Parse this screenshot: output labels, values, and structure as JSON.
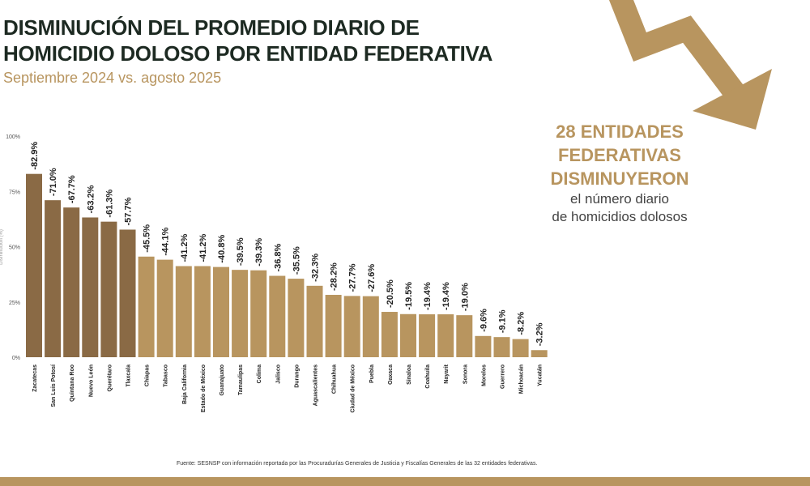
{
  "header": {
    "title_line1": "DISMINUCIÓN DEL PROMEDIO DIARIO DE",
    "title_line2": "HOMICIDIO DOLOSO POR ENTIDAD FEDERATIVA",
    "subtitle": "Septiembre 2024 vs. agosto 2025"
  },
  "callout": {
    "line1": "28 ENTIDADES",
    "line2": "FEDERATIVAS",
    "line3": "DISMINUYERON",
    "line4": "el número diario",
    "line5": "de homicidios dolosos"
  },
  "source": "Fuente: SESNSP con información reportada por las Procuradurías Generales de Justicia y Fiscalías Generales de las 32 entidades federativas.",
  "colors": {
    "highlight": "#8a6a45",
    "bar": "#b8955f",
    "title": "#1d2a22",
    "arrow": "#b8955f"
  },
  "icons": {
    "decoration": "down-trend-arrow-icon"
  },
  "chart_data": {
    "type": "bar",
    "ylabel": "Disminución (%)",
    "ylim": [
      0,
      100
    ],
    "yticks": [
      "0%",
      "25%",
      "50%",
      "75%",
      "100%"
    ],
    "categories": [
      "Zacatecas",
      "San Luis Potosí",
      "Quintana Roo",
      "Nuevo León",
      "Querétaro",
      "Tlaxcala",
      "Chiapas",
      "Tabasco",
      "Baja California",
      "Estado de México",
      "Guanajuato",
      "Tamaulipas",
      "Colima",
      "Jalisco",
      "Durango",
      "Aguascalientes",
      "Chihuahua",
      "Ciudad de México",
      "Puebla",
      "Oaxaca",
      "Sinaloa",
      "Coahuila",
      "Nayarit",
      "Sonora",
      "Morelos",
      "Guerrero",
      "Michoacán",
      "Yucatán"
    ],
    "values": [
      82.9,
      71.0,
      67.7,
      63.2,
      61.3,
      57.7,
      45.5,
      44.1,
      41.2,
      41.2,
      40.8,
      39.5,
      39.3,
      36.8,
      35.5,
      32.3,
      28.2,
      27.7,
      27.6,
      20.5,
      19.5,
      19.4,
      19.4,
      19.0,
      9.6,
      9.1,
      8.2,
      3.2
    ],
    "labels": [
      "-82.9%",
      "-71.0%",
      "-67.7%",
      "-63.2%",
      "-61.3%",
      "-57.7%",
      "-45.5%",
      "-44.1%",
      "-41.2%",
      "-41.2%",
      "-40.8%",
      "-39.5%",
      "-39.3%",
      "-36.8%",
      "-35.5%",
      "-32.3%",
      "-28.2%",
      "-27.7%",
      "-27.6%",
      "-20.5%",
      "-19.5%",
      "-19.4%",
      "-19.4%",
      "-19.0%",
      "-9.6%",
      "-9.1%",
      "-8.2%",
      "-3.2%"
    ],
    "highlighted_count": 6,
    "grid": false
  }
}
